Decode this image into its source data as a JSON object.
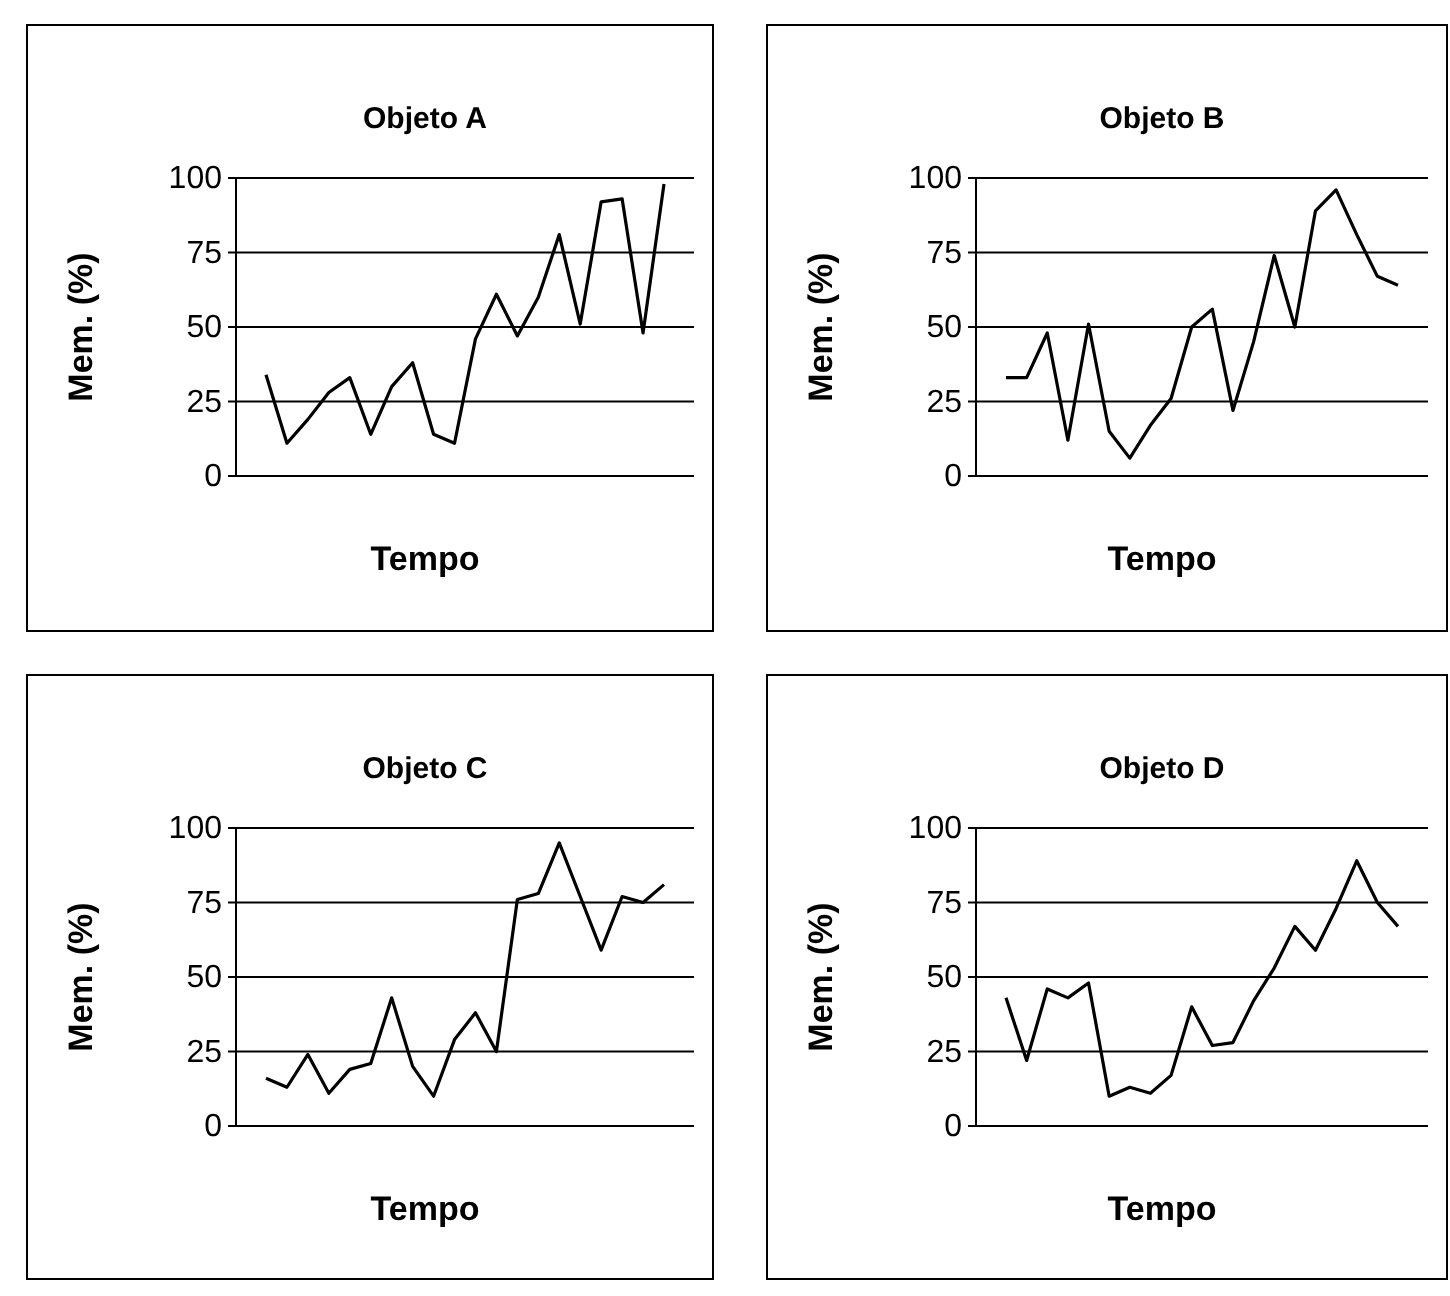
{
  "chart_data": [
    {
      "type": "line",
      "title": "Objeto A",
      "xlabel": "Tempo",
      "ylabel": "Mem. (%)",
      "categories": [
        null,
        null,
        null,
        null,
        null,
        null,
        null,
        null,
        null,
        null,
        null,
        null,
        null,
        null,
        null,
        null,
        null,
        null,
        null,
        null
      ],
      "series": [
        {
          "color": "#000000",
          "values": [
            34,
            11,
            19,
            28,
            33,
            14,
            30,
            38,
            14,
            11,
            46,
            61,
            47,
            60,
            81,
            51,
            92,
            93,
            48,
            98
          ]
        }
      ],
      "ylim": [
        0,
        100
      ],
      "yticks": [
        0,
        25,
        50,
        75,
        100
      ],
      "grid": "y",
      "marker": "none",
      "line_style": "solid"
    },
    {
      "type": "line",
      "title": "Objeto B",
      "xlabel": "Tempo",
      "ylabel": "Mem. (%)",
      "categories": [
        null,
        null,
        null,
        null,
        null,
        null,
        null,
        null,
        null,
        null,
        null,
        null,
        null,
        null,
        null,
        null,
        null,
        null,
        null,
        null
      ],
      "series": [
        {
          "color": "#000000",
          "values": [
            33,
            33,
            48,
            12,
            51,
            15,
            6,
            17,
            26,
            50,
            56,
            22,
            45,
            74,
            50,
            89,
            96,
            81,
            67,
            64
          ]
        }
      ],
      "ylim": [
        0,
        100
      ],
      "yticks": [
        0,
        25,
        50,
        75,
        100
      ],
      "grid": "y",
      "marker": "none",
      "line_style": "solid"
    },
    {
      "type": "line",
      "title": "Objeto C",
      "xlabel": "Tempo",
      "ylabel": "Mem. (%)",
      "categories": [
        null,
        null,
        null,
        null,
        null,
        null,
        null,
        null,
        null,
        null,
        null,
        null,
        null,
        null,
        null,
        null,
        null,
        null,
        null,
        null
      ],
      "series": [
        {
          "color": "#000000",
          "values": [
            16,
            13,
            24,
            11,
            19,
            21,
            43,
            20,
            10,
            29,
            38,
            25,
            76,
            78,
            95,
            77,
            59,
            77,
            75,
            81
          ]
        }
      ],
      "ylim": [
        0,
        100
      ],
      "yticks": [
        0,
        25,
        50,
        75,
        100
      ],
      "grid": "y",
      "marker": "none",
      "line_style": "solid"
    },
    {
      "type": "line",
      "title": "Objeto D",
      "xlabel": "Tempo",
      "ylabel": "Mem. (%)",
      "categories": [
        null,
        null,
        null,
        null,
        null,
        null,
        null,
        null,
        null,
        null,
        null,
        null,
        null,
        null,
        null,
        null,
        null,
        null,
        null,
        null
      ],
      "series": [
        {
          "color": "#000000",
          "values": [
            43,
            22,
            46,
            43,
            48,
            10,
            13,
            11,
            17,
            40,
            27,
            28,
            42,
            53,
            67,
            59,
            73,
            89,
            75,
            67
          ]
        }
      ],
      "ylim": [
        0,
        100
      ],
      "yticks": [
        0,
        25,
        50,
        75,
        100
      ],
      "grid": "y",
      "marker": "none",
      "line_style": "solid"
    }
  ]
}
